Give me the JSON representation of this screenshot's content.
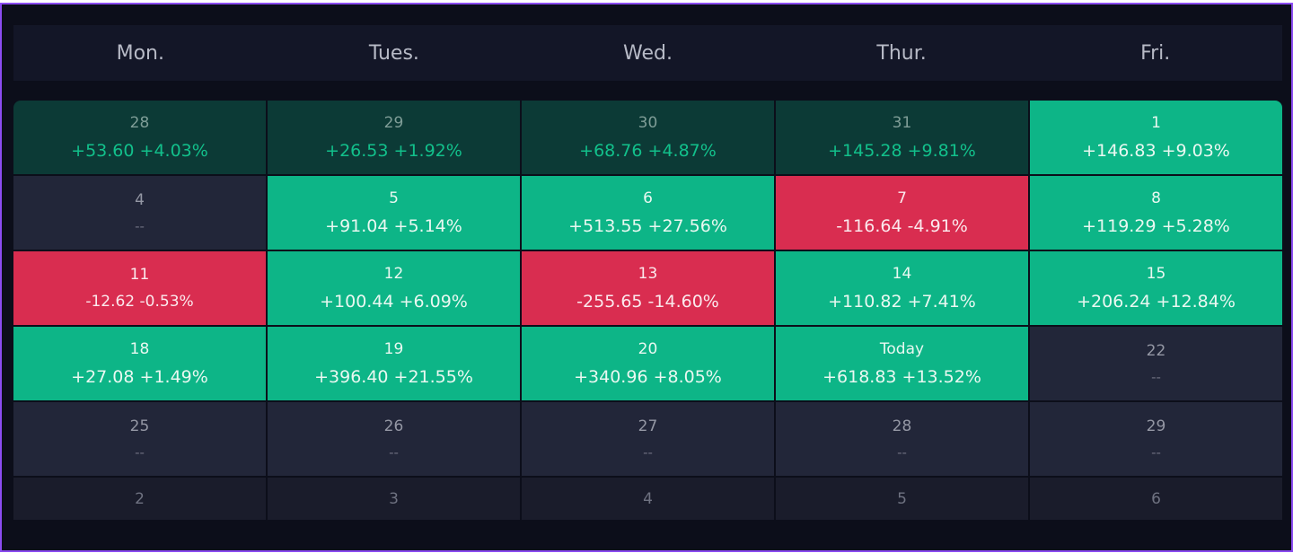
{
  "weekdays": [
    "Mon.",
    "Tues.",
    "Wed.",
    "Thur.",
    "Fri."
  ],
  "colors": {
    "gain": "#0db587",
    "loss": "#d92d50",
    "prev_month": "#0c3a36",
    "empty": "#222639",
    "accent_border": "#8b4cf0"
  },
  "days": [
    {
      "day": "28",
      "value": "+53.60 +4.03%",
      "type": "prev"
    },
    {
      "day": "29",
      "value": "+26.53 +1.92%",
      "type": "prev"
    },
    {
      "day": "30",
      "value": "+68.76 +4.87%",
      "type": "prev"
    },
    {
      "day": "31",
      "value": "+145.28 +9.81%",
      "type": "prev"
    },
    {
      "day": "1",
      "value": "+146.83 +9.03%",
      "type": "up"
    },
    {
      "day": "4",
      "value": "--",
      "type": "empty"
    },
    {
      "day": "5",
      "value": "+91.04 +5.14%",
      "type": "up"
    },
    {
      "day": "6",
      "value": "+513.55 +27.56%",
      "type": "up"
    },
    {
      "day": "7",
      "value": "-116.64 -4.91%",
      "type": "down"
    },
    {
      "day": "8",
      "value": "+119.29 +5.28%",
      "type": "up"
    },
    {
      "day": "11",
      "value": "-12.62 -0.53%",
      "type": "down small"
    },
    {
      "day": "12",
      "value": "+100.44 +6.09%",
      "type": "up"
    },
    {
      "day": "13",
      "value": "-255.65 -14.60%",
      "type": "down"
    },
    {
      "day": "14",
      "value": "+110.82 +7.41%",
      "type": "up"
    },
    {
      "day": "15",
      "value": "+206.24 +12.84%",
      "type": "up"
    },
    {
      "day": "18",
      "value": "+27.08 +1.49%",
      "type": "up"
    },
    {
      "day": "19",
      "value": "+396.40 +21.55%",
      "type": "up"
    },
    {
      "day": "20",
      "value": "+340.96 +8.05%",
      "type": "up"
    },
    {
      "day": "Today",
      "value": "+618.83 +13.52%",
      "type": "up"
    },
    {
      "day": "22",
      "value": "--",
      "type": "empty"
    },
    {
      "day": "25",
      "value": "--",
      "type": "empty"
    },
    {
      "day": "26",
      "value": "--",
      "type": "empty"
    },
    {
      "day": "27",
      "value": "--",
      "type": "empty"
    },
    {
      "day": "28",
      "value": "--",
      "type": "empty"
    },
    {
      "day": "29",
      "value": "--",
      "type": "empty"
    },
    {
      "day": "2",
      "value": null,
      "type": "future short"
    },
    {
      "day": "3",
      "value": null,
      "type": "future short"
    },
    {
      "day": "4",
      "value": null,
      "type": "future short"
    },
    {
      "day": "5",
      "value": null,
      "type": "future short"
    },
    {
      "day": "6",
      "value": null,
      "type": "future short"
    }
  ]
}
